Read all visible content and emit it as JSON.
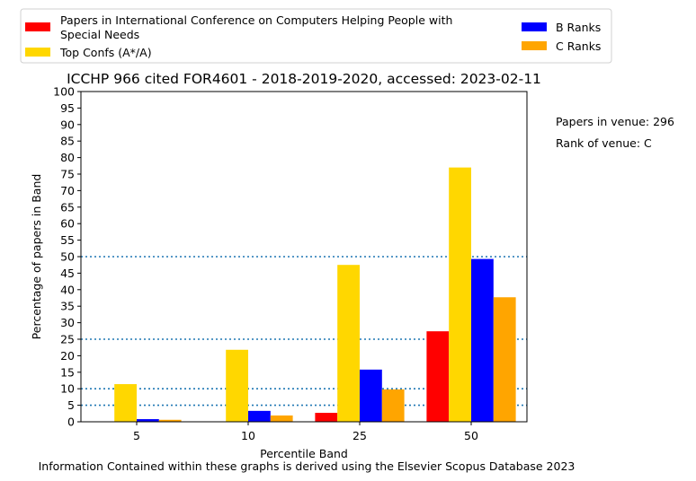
{
  "chart_data": {
    "type": "bar",
    "title": "ICCHP 966 cited FOR4601 - 2018-2019-2020, accessed: 2023-02-11",
    "xlabel": "Percentile Band",
    "ylabel": "Percentage of papers in Band",
    "categories": [
      "5",
      "10",
      "25",
      "50"
    ],
    "ylim": [
      0,
      100
    ],
    "yticks": [
      "0",
      "5",
      "10",
      "15",
      "20",
      "25",
      "30",
      "35",
      "40",
      "45",
      "50",
      "55",
      "60",
      "65",
      "70",
      "75",
      "80",
      "85",
      "90",
      "95",
      "100"
    ],
    "series": [
      {
        "name": "Papers in International Conference on Computers Helping People with Special Needs",
        "color": "#ff0000",
        "values": [
          0,
          0,
          2.7,
          27.4
        ]
      },
      {
        "name": "Top Confs (A*/A)",
        "color": "#ffd700",
        "values": [
          11.4,
          21.8,
          47.5,
          77.0
        ]
      },
      {
        "name": "B Ranks",
        "color": "#0000ff",
        "values": [
          0.8,
          3.3,
          15.8,
          49.3
        ]
      },
      {
        "name": "C Ranks",
        "color": "#ffa500",
        "values": [
          0.6,
          1.9,
          9.8,
          37.7
        ]
      }
    ],
    "reference_lines": [
      5,
      10,
      25,
      50
    ],
    "reference_line_color": "#1f77b4",
    "legend_position": "top",
    "grid": false,
    "annotations": [
      "Papers in venue: 296",
      "Rank of venue: C"
    ],
    "footer": "Information Contained within these graphs is derived using the Elsevier Scopus Database 2023"
  }
}
